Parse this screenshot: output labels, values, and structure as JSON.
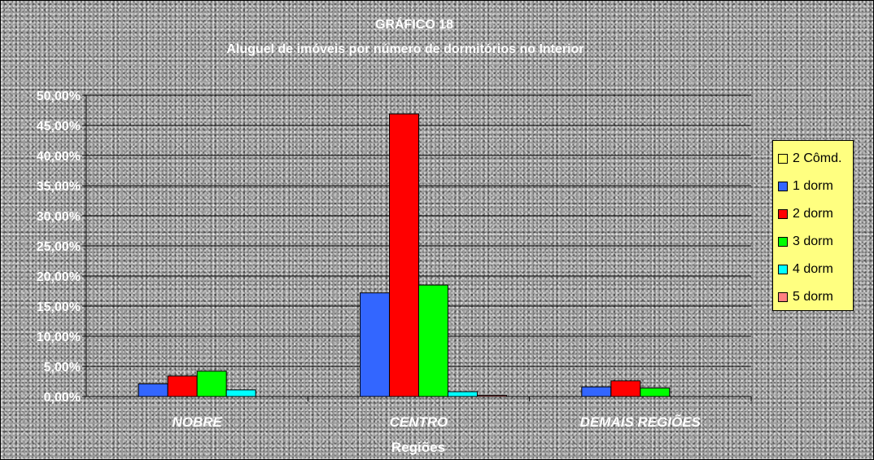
{
  "chart_data": {
    "type": "bar",
    "title": "GRÁFICO 18",
    "subtitle": "Aluguel de imóveis por número de dormitórios no Interior",
    "xlabel": "Regiões",
    "ylabel": "",
    "categories": [
      "NOBRE",
      "CENTRO",
      "DEMAIS REGIÕES"
    ],
    "ylim": [
      0,
      50
    ],
    "y_ticks": [
      0,
      5,
      10,
      15,
      20,
      25,
      30,
      35,
      40,
      45,
      50
    ],
    "y_tick_labels": [
      "0,00%",
      "5,00%",
      "10,00%",
      "15,00%",
      "20,00%",
      "25,00%",
      "30,00%",
      "35,00%",
      "40,00%",
      "45,00%",
      "50,00%"
    ],
    "grid": true,
    "legend_position": "right",
    "series": [
      {
        "name": "2 Cômd.",
        "color": "#ffff66",
        "values": [
          0,
          0,
          0
        ]
      },
      {
        "name": "1 dorm",
        "color": "#3366ff",
        "values": [
          2.1,
          17.2,
          1.6
        ]
      },
      {
        "name": "2 dorm",
        "color": "#ff0000",
        "values": [
          3.4,
          46.9,
          2.6
        ]
      },
      {
        "name": "3 dorm",
        "color": "#00ff00",
        "values": [
          4.2,
          18.5,
          1.4
        ]
      },
      {
        "name": "4 dorm",
        "color": "#00ffff",
        "values": [
          1.1,
          0.8,
          0
        ]
      },
      {
        "name": "5 dorm",
        "color": "#ff8080",
        "values": [
          0,
          0.2,
          0
        ]
      }
    ]
  }
}
